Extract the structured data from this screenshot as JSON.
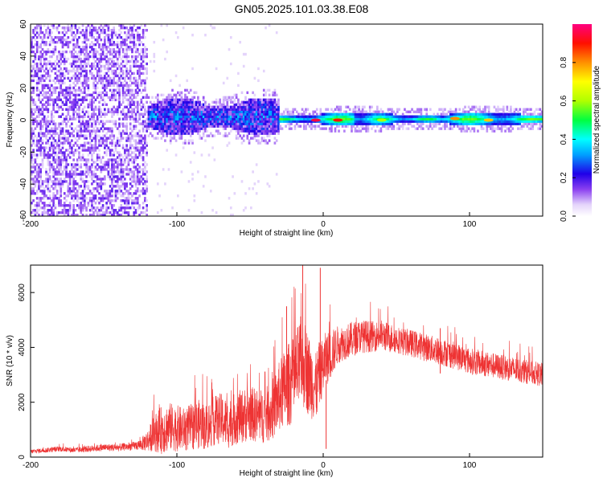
{
  "title": "GN05.2025.101.03.38.E08",
  "chart_data": [
    {
      "type": "heatmap",
      "title": "",
      "xlabel": "Height of straight line (km)",
      "ylabel": "Frequency (Hz)",
      "xlim": [
        -200,
        150
      ],
      "ylim": [
        -60,
        60
      ],
      "x_ticks": [
        -200,
        -100,
        0,
        100
      ],
      "y_ticks": [
        -60,
        -40,
        -20,
        0,
        20,
        40,
        60
      ],
      "colorbar": {
        "label": "Normalized spectral amplitude",
        "range": [
          0,
          1
        ],
        "ticks": [
          "0.0",
          "0.2",
          "0.4",
          "0.6",
          "0.8"
        ]
      },
      "regions": [
        {
          "x_range": [
            -200,
            -120
          ],
          "freq_range": [
            -60,
            60
          ],
          "amplitude": [
            0.0,
            0.15
          ]
        },
        {
          "x_range": [
            -120,
            -30
          ],
          "freq_range": [
            -10,
            12
          ],
          "amplitude": [
            0.1,
            0.35
          ]
        },
        {
          "x_range": [
            -30,
            150
          ],
          "freq_range": [
            -4,
            4
          ],
          "amplitude": [
            0.3,
            0.95
          ]
        }
      ],
      "peaks": [
        {
          "x": -5,
          "freq": 0,
          "amplitude": 0.95
        },
        {
          "x": 10,
          "freq": 0,
          "amplitude": 0.9
        },
        {
          "x": 40,
          "freq": 0,
          "amplitude": 0.6
        },
        {
          "x": 90,
          "freq": 1,
          "amplitude": 0.8
        },
        {
          "x": 113,
          "freq": 0,
          "amplitude": 0.75
        }
      ]
    },
    {
      "type": "line",
      "title": "",
      "xlabel": "Height of straight line (km)",
      "ylabel": "SNR (10 * v/v)",
      "xlim": [
        -200,
        150
      ],
      "ylim": [
        0,
        7000
      ],
      "x_ticks": [
        -200,
        -100,
        0,
        100
      ],
      "y_ticks": [
        0,
        2000,
        4000,
        6000
      ],
      "color": "#ee3333",
      "series": [
        {
          "name": "",
          "x": [
            -200,
            -190,
            -180,
            -170,
            -160,
            -150,
            -140,
            -130,
            -125,
            -120,
            -115,
            -110,
            -105,
            -100,
            -95,
            -90,
            -85,
            -80,
            -75,
            -70,
            -65,
            -60,
            -55,
            -50,
            -45,
            -40,
            -35,
            -30,
            -25,
            -20,
            -15,
            -12,
            -10,
            -8,
            -5,
            -3,
            -2,
            0,
            2,
            5,
            10,
            15,
            20,
            25,
            30,
            35,
            40,
            45,
            50,
            55,
            60,
            70,
            80,
            90,
            100,
            110,
            120,
            130,
            140,
            150
          ],
          "y": [
            200,
            250,
            300,
            250,
            300,
            350,
            350,
            400,
            450,
            600,
            900,
            1000,
            1100,
            1050,
            1000,
            1100,
            1200,
            1100,
            1300,
            1400,
            1200,
            1400,
            1500,
            1600,
            1500,
            1500,
            1700,
            2200,
            2600,
            2800,
            3500,
            3300,
            3000,
            2800,
            2500,
            3000,
            3100,
            3300,
            3600,
            3700,
            4100,
            4200,
            4300,
            4400,
            4400,
            4400,
            4450,
            4350,
            4300,
            4200,
            4150,
            4000,
            3850,
            3700,
            3500,
            3400,
            3300,
            3200,
            3100,
            3000
          ],
          "spread": [
            80,
            90,
            100,
            100,
            120,
            130,
            140,
            150,
            200,
            400,
            700,
            900,
            900,
            850,
            800,
            850,
            900,
            850,
            900,
            950,
            900,
            950,
            1000,
            1000,
            1000,
            1000,
            1100,
            1300,
            1500,
            1600,
            1700,
            1600,
            1500,
            1400,
            1300,
            1200,
            1100,
            1100,
            1000,
            900,
            700,
            650,
            650,
            600,
            600,
            550,
            550,
            550,
            500,
            500,
            500,
            500,
            500,
            500,
            480,
            480,
            460,
            460,
            440,
            440
          ]
        }
      ],
      "spikes": [
        {
          "x": -14,
          "y": 7000
        },
        {
          "x": -2,
          "y": 6900
        },
        {
          "x": 2,
          "y": 300
        },
        {
          "x": -25,
          "y": 5500
        },
        {
          "x": 80,
          "y": 4700
        }
      ]
    }
  ]
}
